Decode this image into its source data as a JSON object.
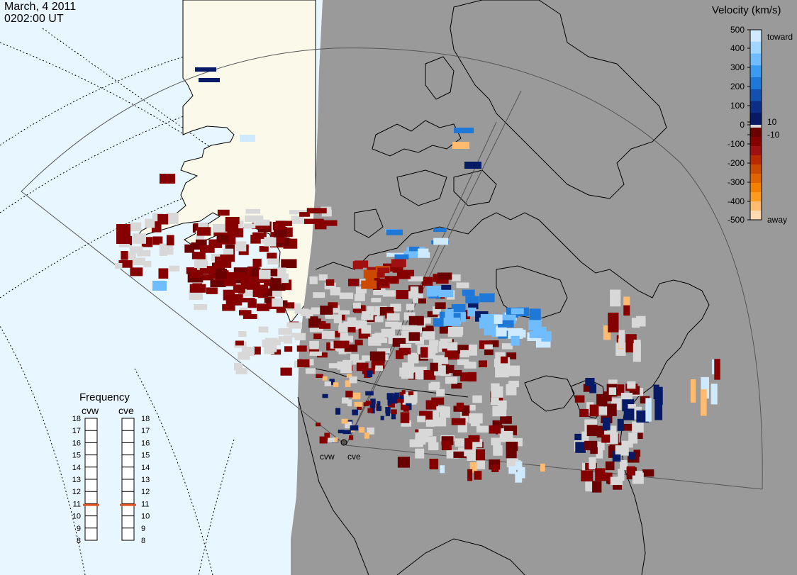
{
  "header": {
    "date": "March, 4 2011",
    "time": "0202:00 UT"
  },
  "velocity_scale": {
    "title": "Velocity (km/s)",
    "ticks": [
      "500",
      "400",
      "300",
      "200",
      "100",
      "10",
      "0",
      "-10",
      "-100",
      "-200",
      "-300",
      "-400",
      "-500"
    ],
    "toward_label": "toward",
    "away_label": "away",
    "colors_toward": [
      "#cfe9ff",
      "#a3d6ff",
      "#6fbcff",
      "#3a9bf0",
      "#1e78d8",
      "#1450b0",
      "#0b2f84",
      "#061a66"
    ],
    "colors_away": [
      "#6a0000",
      "#860000",
      "#a01010",
      "#b82a00",
      "#cc4a00",
      "#e06400",
      "#f38000",
      "#ff9c20",
      "#ffbb70",
      "#ffd9b0"
    ],
    "ground_scatter_color": "#d8d8d8"
  },
  "radars": [
    {
      "name": "cvw",
      "frequency": 10.9
    },
    {
      "name": "cve",
      "frequency": 10.9
    }
  ],
  "frequency_panel": {
    "title": "Frequency",
    "ticks": [
      "18",
      "17",
      "16",
      "15",
      "14",
      "13",
      "12",
      "11",
      "10",
      "9",
      "8"
    ],
    "marker_color": "#e05020"
  },
  "map_colors": {
    "ocean": "#e8f6ff",
    "land": "#faf9ea",
    "night": "#9a9a9a",
    "coast": "#000000"
  }
}
